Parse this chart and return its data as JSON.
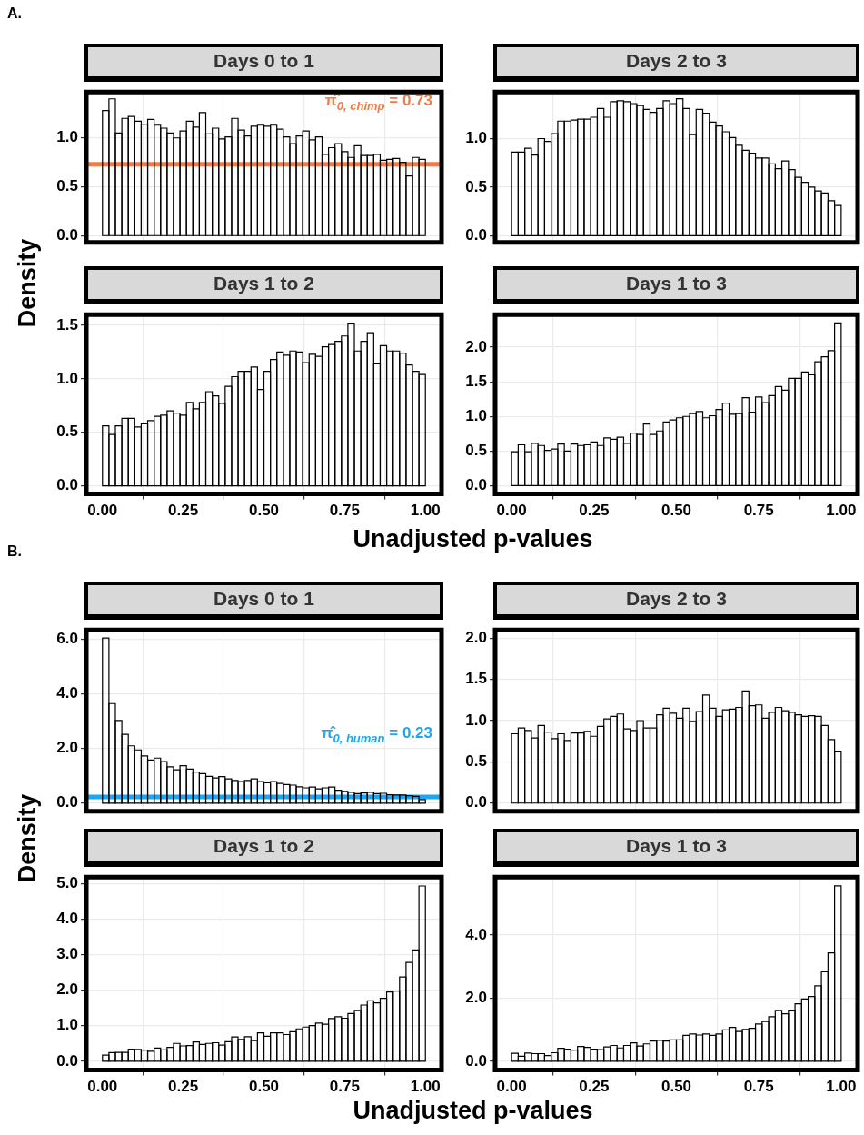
{
  "chart_data": [
    {
      "type": "histogram",
      "title": "Days 0 to 1",
      "ylabel": "Density",
      "annotations": [
        "A."
      ],
      "grid": true,
      "tick_labels": "y",
      "bins": [
        0,
        0.02,
        0.04,
        0.06,
        0.08,
        0.1,
        0.12,
        0.14,
        0.16,
        0.18,
        0.2,
        0.22,
        0.24,
        0.26,
        0.28,
        0.3,
        0.32,
        0.34,
        0.36,
        0.38,
        0.4,
        0.42,
        0.44,
        0.46,
        0.48,
        0.5,
        0.52,
        0.54,
        0.56,
        0.58,
        0.6,
        0.62,
        0.64,
        0.66,
        0.68,
        0.7,
        0.72,
        0.74,
        0.76,
        0.78,
        0.8,
        0.82,
        0.84,
        0.86,
        0.88,
        0.9,
        0.92,
        0.94,
        0.96,
        0.98,
        1
      ],
      "values": [
        1.28,
        1.4,
        1.05,
        1.2,
        1.22,
        1.17,
        1.14,
        1.19,
        1.13,
        1.1,
        1.05,
        1.0,
        1.07,
        1.17,
        1.11,
        1.26,
        1.04,
        1.1,
        0.99,
        1.01,
        1.2,
        1.08,
        1.02,
        1.12,
        1.13,
        1.12,
        1.13,
        1.09,
        1.01,
        0.94,
        1.02,
        1.07,
        0.98,
        1.01,
        0.83,
        0.9,
        0.94,
        0.86,
        0.8,
        0.92,
        0.82,
        0.82,
        0.83,
        0.77,
        0.78,
        0.79,
        0.75,
        0.61,
        0.8,
        0.78
      ],
      "color": "#000000",
      "xlim": [
        -0.05,
        1.05
      ],
      "ylim": [
        -0.07,
        1.47
      ],
      "xticks": [
        {
          "value": 0,
          "label": null
        },
        {
          "value": 0.25,
          "label": null
        },
        {
          "value": 0.5,
          "label": null
        },
        {
          "value": 0.75,
          "label": null
        },
        {
          "value": 1,
          "label": null
        }
      ],
      "yticks": [
        {
          "value": 0,
          "label": "0.0"
        },
        {
          "value": 0.5,
          "label": "0.5"
        },
        {
          "value": 1,
          "label": "1.0"
        }
      ],
      "ref_lines": [
        {
          "axis": "y",
          "value": 0.73,
          "label": "π̂$_{0, chimp}$ = 0.73",
          "color": "#ee7d4b"
        }
      ]
    },
    {
      "type": "histogram",
      "title": "Days 2 to 3",
      "grid": true,
      "tick_labels": "y",
      "bins": [
        0,
        0.02,
        0.04,
        0.06,
        0.08,
        0.1,
        0.12,
        0.14,
        0.16,
        0.18,
        0.2,
        0.22,
        0.24,
        0.26,
        0.28,
        0.3,
        0.32,
        0.34,
        0.36,
        0.38,
        0.4,
        0.42,
        0.44,
        0.46,
        0.48,
        0.5,
        0.52,
        0.54,
        0.56,
        0.58,
        0.6,
        0.62,
        0.64,
        0.66,
        0.68,
        0.7,
        0.72,
        0.74,
        0.76,
        0.78,
        0.8,
        0.82,
        0.84,
        0.86,
        0.88,
        0.9,
        0.92,
        0.94,
        0.96,
        0.98,
        1
      ],
      "values": [
        0.86,
        0.86,
        0.9,
        0.83,
        1.0,
        0.97,
        1.05,
        1.18,
        1.18,
        1.19,
        1.2,
        1.2,
        1.22,
        1.31,
        1.22,
        1.38,
        1.39,
        1.38,
        1.36,
        1.34,
        1.3,
        1.27,
        1.31,
        1.39,
        1.36,
        1.41,
        1.31,
        1.04,
        1.3,
        1.26,
        1.17,
        1.13,
        1.07,
        1.01,
        0.93,
        0.88,
        0.85,
        0.8,
        0.8,
        0.74,
        0.69,
        0.77,
        0.68,
        0.6,
        0.55,
        0.5,
        0.46,
        0.44,
        0.36,
        0.31
      ],
      "color": "#000000",
      "xlim": [
        -0.05,
        1.05
      ],
      "ylim": [
        -0.07,
        1.48
      ],
      "xticks": [
        {
          "value": 0,
          "label": null
        },
        {
          "value": 0.25,
          "label": null
        },
        {
          "value": 0.5,
          "label": null
        },
        {
          "value": 0.75,
          "label": null
        },
        {
          "value": 1,
          "label": null
        }
      ],
      "yticks": [
        {
          "value": 0,
          "label": "0.0"
        },
        {
          "value": 0.5,
          "label": "0.5"
        },
        {
          "value": 1,
          "label": "1.0"
        }
      ]
    },
    {
      "type": "histogram",
      "title": "Days 1 to 2",
      "xlabel": "Unadjusted p-values",
      "grid": true,
      "bins": [
        0,
        0.02,
        0.04,
        0.06,
        0.08,
        0.1,
        0.12,
        0.14,
        0.16,
        0.18,
        0.2,
        0.22,
        0.24,
        0.26,
        0.28,
        0.3,
        0.32,
        0.34,
        0.36,
        0.38,
        0.4,
        0.42,
        0.44,
        0.46,
        0.48,
        0.5,
        0.52,
        0.54,
        0.56,
        0.58,
        0.6,
        0.62,
        0.64,
        0.66,
        0.68,
        0.7,
        0.72,
        0.74,
        0.76,
        0.78,
        0.8,
        0.82,
        0.84,
        0.86,
        0.88,
        0.9,
        0.92,
        0.94,
        0.96,
        0.98,
        1
      ],
      "values": [
        0.56,
        0.48,
        0.56,
        0.63,
        0.63,
        0.55,
        0.58,
        0.61,
        0.65,
        0.66,
        0.7,
        0.68,
        0.66,
        0.78,
        0.72,
        0.78,
        0.88,
        0.84,
        0.77,
        0.93,
        1.02,
        1.07,
        1.07,
        1.11,
        0.9,
        1.07,
        1.18,
        1.25,
        1.22,
        1.26,
        1.25,
        1.15,
        1.23,
        1.21,
        1.3,
        1.32,
        1.35,
        1.4,
        1.52,
        1.26,
        1.35,
        1.43,
        1.14,
        1.31,
        1.26,
        1.26,
        1.24,
        1.13,
        1.07,
        1.04
      ],
      "color": "#000000",
      "xlim": [
        -0.05,
        1.05
      ],
      "ylim": [
        -0.076,
        1.6
      ],
      "xticks": [
        {
          "value": 0,
          "label": "0.00"
        },
        {
          "value": 0.25,
          "label": "0.25"
        },
        {
          "value": 0.5,
          "label": "0.50"
        },
        {
          "value": 0.75,
          "label": "0.75"
        },
        {
          "value": 1,
          "label": "1.00"
        }
      ],
      "yticks": [
        {
          "value": 0,
          "label": "0.0"
        },
        {
          "value": 0.5,
          "label": "0.5"
        },
        {
          "value": 1,
          "label": "1.0"
        },
        {
          "value": 1.5,
          "label": "1.5"
        }
      ]
    },
    {
      "type": "histogram",
      "title": "Days 1 to 3",
      "grid": true,
      "bins": [
        0,
        0.02,
        0.04,
        0.06,
        0.08,
        0.1,
        0.12,
        0.14,
        0.16,
        0.18,
        0.2,
        0.22,
        0.24,
        0.26,
        0.28,
        0.3,
        0.32,
        0.34,
        0.36,
        0.38,
        0.4,
        0.42,
        0.44,
        0.46,
        0.48,
        0.5,
        0.52,
        0.54,
        0.56,
        0.58,
        0.6,
        0.62,
        0.64,
        0.66,
        0.68,
        0.7,
        0.72,
        0.74,
        0.76,
        0.78,
        0.8,
        0.82,
        0.84,
        0.86,
        0.88,
        0.9,
        0.92,
        0.94,
        0.96,
        0.98,
        1
      ],
      "values": [
        0.49,
        0.59,
        0.49,
        0.61,
        0.58,
        0.51,
        0.53,
        0.6,
        0.5,
        0.6,
        0.58,
        0.59,
        0.63,
        0.58,
        0.69,
        0.67,
        0.7,
        0.61,
        0.76,
        0.74,
        0.89,
        0.74,
        0.79,
        0.92,
        0.95,
        0.98,
        1.0,
        1.04,
        1.07,
        0.98,
        1.01,
        1.1,
        1.19,
        1.03,
        1.04,
        1.27,
        1.06,
        1.28,
        1.2,
        1.3,
        1.43,
        1.38,
        1.55,
        1.55,
        1.64,
        1.6,
        1.79,
        1.86,
        1.95,
        2.35
      ],
      "color": "#000000",
      "xlim": [
        -0.05,
        1.05
      ],
      "ylim": [
        -0.12,
        2.47
      ],
      "xticks": [
        {
          "value": 0,
          "label": "0.00"
        },
        {
          "value": 0.25,
          "label": "0.25"
        },
        {
          "value": 0.5,
          "label": "0.50"
        },
        {
          "value": 0.75,
          "label": "0.75"
        },
        {
          "value": 1,
          "label": "1.00"
        }
      ],
      "yticks": [
        {
          "value": 0,
          "label": "0.0"
        },
        {
          "value": 0.5,
          "label": "0.5"
        },
        {
          "value": 1,
          "label": "1.0"
        },
        {
          "value": 1.5,
          "label": "1.5"
        },
        {
          "value": 2,
          "label": "2.0"
        }
      ]
    },
    {
      "type": "histogram",
      "title": "Days 0 to 1",
      "ylabel": "Density",
      "annotations": [
        "B."
      ],
      "grid": true,
      "tick_labels": "y",
      "bins": [
        0,
        0.02,
        0.04,
        0.06,
        0.08,
        0.1,
        0.12,
        0.14,
        0.16,
        0.18,
        0.2,
        0.22,
        0.24,
        0.26,
        0.28,
        0.3,
        0.32,
        0.34,
        0.36,
        0.38,
        0.4,
        0.42,
        0.44,
        0.46,
        0.48,
        0.5,
        0.52,
        0.54,
        0.56,
        0.58,
        0.6,
        0.62,
        0.64,
        0.66,
        0.68,
        0.7,
        0.72,
        0.74,
        0.76,
        0.78,
        0.8,
        0.82,
        0.84,
        0.86,
        0.88,
        0.9,
        0.92,
        0.94,
        0.96,
        0.98,
        1
      ],
      "values": [
        6.05,
        3.65,
        3.03,
        2.52,
        2.1,
        1.95,
        1.73,
        1.58,
        1.65,
        1.52,
        1.33,
        1.22,
        1.37,
        1.25,
        1.14,
        1.08,
        0.98,
        0.92,
        0.97,
        0.89,
        0.83,
        0.79,
        0.83,
        0.89,
        0.79,
        0.75,
        0.79,
        0.72,
        0.68,
        0.66,
        0.6,
        0.56,
        0.59,
        0.52,
        0.56,
        0.59,
        0.47,
        0.43,
        0.4,
        0.35,
        0.37,
        0.4,
        0.35,
        0.36,
        0.31,
        0.3,
        0.3,
        0.27,
        0.25,
        0.13
      ],
      "color": "#000000",
      "xlim": [
        -0.05,
        1.05
      ],
      "ylim": [
        -0.3,
        6.35
      ],
      "xticks": [
        {
          "value": 0,
          "label": null
        },
        {
          "value": 0.25,
          "label": null
        },
        {
          "value": 0.5,
          "label": null
        },
        {
          "value": 0.75,
          "label": null
        },
        {
          "value": 1,
          "label": null
        }
      ],
      "yticks": [
        {
          "value": 0,
          "label": "0.0"
        },
        {
          "value": 2,
          "label": "2.0"
        },
        {
          "value": 4,
          "label": "4.0"
        },
        {
          "value": 6,
          "label": "6.0"
        }
      ],
      "ref_lines": [
        {
          "axis": "y",
          "value": 0.23,
          "label": "π̂$_{0, human}$ = 0.23",
          "color": "#1ea7f0"
        }
      ]
    },
    {
      "type": "histogram",
      "title": "Days 2 to 3",
      "grid": true,
      "tick_labels": "y",
      "bins": [
        0,
        0.02,
        0.04,
        0.06,
        0.08,
        0.1,
        0.12,
        0.14,
        0.16,
        0.18,
        0.2,
        0.22,
        0.24,
        0.26,
        0.28,
        0.3,
        0.32,
        0.34,
        0.36,
        0.38,
        0.4,
        0.42,
        0.44,
        0.46,
        0.48,
        0.5,
        0.52,
        0.54,
        0.56,
        0.58,
        0.6,
        0.62,
        0.64,
        0.66,
        0.68,
        0.7,
        0.72,
        0.74,
        0.76,
        0.78,
        0.8,
        0.82,
        0.84,
        0.86,
        0.88,
        0.9,
        0.92,
        0.94,
        0.96,
        0.98,
        1
      ],
      "values": [
        0.84,
        0.91,
        0.88,
        0.79,
        0.94,
        0.86,
        0.78,
        0.84,
        0.76,
        0.85,
        0.85,
        0.87,
        0.81,
        0.93,
        1.02,
        1.05,
        1.08,
        0.9,
        0.88,
        1.0,
        0.91,
        0.91,
        1.07,
        1.15,
        1.09,
        1.03,
        1.15,
        0.99,
        1.11,
        1.31,
        1.15,
        1.05,
        1.13,
        1.14,
        1.16,
        1.36,
        1.18,
        1.19,
        1.03,
        1.1,
        1.16,
        1.12,
        1.1,
        1.07,
        1.05,
        1.06,
        1.05,
        0.94,
        0.77,
        0.63
      ],
      "color": "#000000",
      "xlim": [
        -0.05,
        1.05
      ],
      "ylim": [
        -0.1,
        2.1
      ],
      "xticks": [
        {
          "value": 0,
          "label": null
        },
        {
          "value": 0.25,
          "label": null
        },
        {
          "value": 0.5,
          "label": null
        },
        {
          "value": 0.75,
          "label": null
        },
        {
          "value": 1,
          "label": null
        }
      ],
      "yticks": [
        {
          "value": 0,
          "label": "0.0"
        },
        {
          "value": 0.5,
          "label": "0.5"
        },
        {
          "value": 1,
          "label": "1.0"
        },
        {
          "value": 1.5,
          "label": "1.5"
        },
        {
          "value": 2,
          "label": "2.0"
        }
      ]
    },
    {
      "type": "histogram",
      "title": "Days 1 to 2",
      "xlabel": "Unadjusted p-values",
      "grid": true,
      "bins": [
        0,
        0.02,
        0.04,
        0.06,
        0.08,
        0.1,
        0.12,
        0.14,
        0.16,
        0.18,
        0.2,
        0.22,
        0.24,
        0.26,
        0.28,
        0.3,
        0.32,
        0.34,
        0.36,
        0.38,
        0.4,
        0.42,
        0.44,
        0.46,
        0.48,
        0.5,
        0.52,
        0.54,
        0.56,
        0.58,
        0.6,
        0.62,
        0.64,
        0.66,
        0.68,
        0.7,
        0.72,
        0.74,
        0.76,
        0.78,
        0.8,
        0.82,
        0.84,
        0.86,
        0.88,
        0.9,
        0.92,
        0.94,
        0.96,
        0.98,
        1
      ],
      "values": [
        0.17,
        0.24,
        0.25,
        0.25,
        0.34,
        0.33,
        0.31,
        0.28,
        0.37,
        0.32,
        0.39,
        0.5,
        0.43,
        0.44,
        0.54,
        0.47,
        0.5,
        0.52,
        0.45,
        0.55,
        0.68,
        0.61,
        0.69,
        0.58,
        0.8,
        0.7,
        0.8,
        0.8,
        0.75,
        0.83,
        0.91,
        0.96,
        1.0,
        1.07,
        1.04,
        1.2,
        1.25,
        1.21,
        1.34,
        1.43,
        1.58,
        1.7,
        1.64,
        1.77,
        1.95,
        1.97,
        2.37,
        2.78,
        3.13,
        4.93
      ],
      "color": "#000000",
      "xlim": [
        -0.05,
        1.05
      ],
      "ylim": [
        -0.25,
        5.18
      ],
      "xticks": [
        {
          "value": 0,
          "label": "0.00"
        },
        {
          "value": 0.25,
          "label": "0.25"
        },
        {
          "value": 0.5,
          "label": "0.50"
        },
        {
          "value": 0.75,
          "label": "0.75"
        },
        {
          "value": 1,
          "label": "1.00"
        }
      ],
      "yticks": [
        {
          "value": 0,
          "label": "0.0"
        },
        {
          "value": 1,
          "label": "1.0"
        },
        {
          "value": 2,
          "label": "2.0"
        },
        {
          "value": 3,
          "label": "3.0"
        },
        {
          "value": 4,
          "label": "4.0"
        },
        {
          "value": 5,
          "label": "5.0"
        }
      ]
    },
    {
      "type": "histogram",
      "title": "Days 1 to 3",
      "grid": true,
      "bins": [
        0,
        0.02,
        0.04,
        0.06,
        0.08,
        0.1,
        0.12,
        0.14,
        0.16,
        0.18,
        0.2,
        0.22,
        0.24,
        0.26,
        0.28,
        0.3,
        0.32,
        0.34,
        0.36,
        0.38,
        0.4,
        0.42,
        0.44,
        0.46,
        0.48,
        0.5,
        0.52,
        0.54,
        0.56,
        0.58,
        0.6,
        0.62,
        0.64,
        0.66,
        0.68,
        0.7,
        0.72,
        0.74,
        0.76,
        0.78,
        0.8,
        0.82,
        0.84,
        0.86,
        0.88,
        0.9,
        0.92,
        0.94,
        0.96,
        0.98,
        1
      ],
      "values": [
        0.25,
        0.16,
        0.26,
        0.24,
        0.24,
        0.18,
        0.27,
        0.41,
        0.38,
        0.35,
        0.47,
        0.44,
        0.38,
        0.37,
        0.45,
        0.5,
        0.42,
        0.5,
        0.58,
        0.48,
        0.55,
        0.64,
        0.66,
        0.64,
        0.68,
        0.68,
        0.82,
        0.86,
        0.83,
        0.86,
        0.82,
        0.86,
        0.99,
        1.07,
        0.94,
        1.01,
        1.04,
        1.18,
        1.26,
        1.41,
        1.61,
        1.5,
        1.62,
        1.82,
        1.97,
        2.05,
        2.39,
        2.83,
        3.43,
        5.55
      ],
      "color": "#000000",
      "xlim": [
        -0.05,
        1.05
      ],
      "ylim": [
        -0.28,
        5.83
      ],
      "xticks": [
        {
          "value": 0,
          "label": "0.00"
        },
        {
          "value": 0.25,
          "label": "0.25"
        },
        {
          "value": 0.5,
          "label": "0.50"
        },
        {
          "value": 0.75,
          "label": "0.75"
        },
        {
          "value": 1,
          "label": "1.00"
        }
      ],
      "yticks": [
        {
          "value": 0,
          "label": "0.0"
        },
        {
          "value": 2,
          "label": "2.0"
        },
        {
          "value": 4,
          "label": "4.0"
        }
      ]
    }
  ]
}
